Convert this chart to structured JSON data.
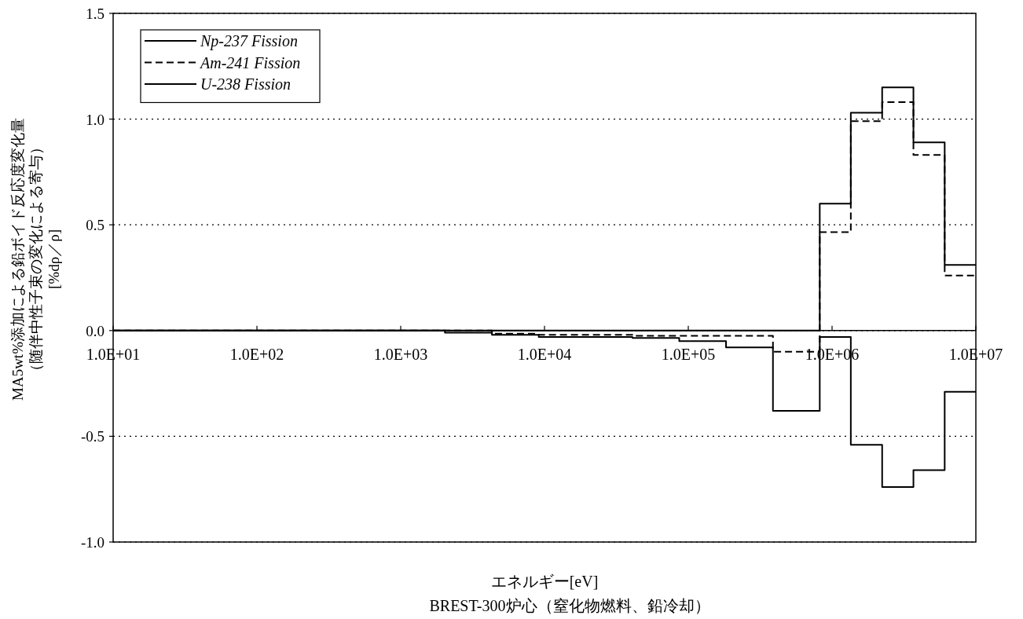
{
  "chart_data": {
    "type": "step",
    "xlabel": "エネルギー[eV]",
    "ylabel": "MA5wt%添加による鉛ボイド反応度変化量（随伴中性子束の変化による寄与）[%dρ／ρ]",
    "annotations": [
      "BREST-300炉心（窒化物燃料、鉛冷却）"
    ],
    "log": "x",
    "xlim": [
      10,
      10000000
    ],
    "xticks": [
      {
        "value": 10,
        "label": "1.0E+01"
      },
      {
        "value": 100,
        "label": "1.0E+02"
      },
      {
        "value": 1000,
        "label": "1.0E+03"
      },
      {
        "value": 10000,
        "label": "1.0E+04"
      },
      {
        "value": 100000,
        "label": "1.0E+05"
      },
      {
        "value": 1000000,
        "label": "1.0E+06"
      },
      {
        "value": 10000000,
        "label": "1.0E+07"
      }
    ],
    "ylim": [
      -1,
      1.5
    ],
    "yticks": [
      {
        "value": -1,
        "label": "-1.0"
      },
      {
        "value": -0.5,
        "label": "-0.5"
      },
      {
        "value": 0,
        "label": "0.0"
      },
      {
        "value": 0.5,
        "label": "0.5"
      },
      {
        "value": 1,
        "label": "1.0"
      },
      {
        "value": 1.5,
        "label": "1.5"
      }
    ],
    "grid": "y",
    "legend": "top left",
    "x": [
      10,
      2030,
      4310,
      9120,
      19300,
      40900,
      86500,
      183000,
      388000,
      821000,
      1350000,
      2230000,
      3680000,
      6070000,
      10000000
    ],
    "series": [
      {
        "name": "Np-237 Fission",
        "color": "#000000",
        "line_style": "solid",
        "values": [
          0,
          0,
          0,
          0,
          0,
          0,
          0,
          0,
          0,
          0.6,
          1.03,
          1.15,
          0.89,
          0.31,
          0.31
        ]
      },
      {
        "name": "Am-241 Fission",
        "color": "#000000",
        "line_style": "dashed",
        "values": [
          0,
          0,
          -0.015,
          -0.02,
          -0.02,
          -0.025,
          -0.025,
          -0.025,
          -0.1,
          0.465,
          0.99,
          1.08,
          0.83,
          0.26,
          0.26
        ]
      },
      {
        "name": "U-238 Fission",
        "color": "#000000",
        "line_style": "solid",
        "values": [
          0,
          -0.01,
          -0.02,
          -0.03,
          -0.03,
          -0.035,
          -0.05,
          -0.08,
          -0.38,
          -0.03,
          -0.54,
          -0.74,
          -0.66,
          -0.29,
          -0.29
        ]
      }
    ]
  }
}
